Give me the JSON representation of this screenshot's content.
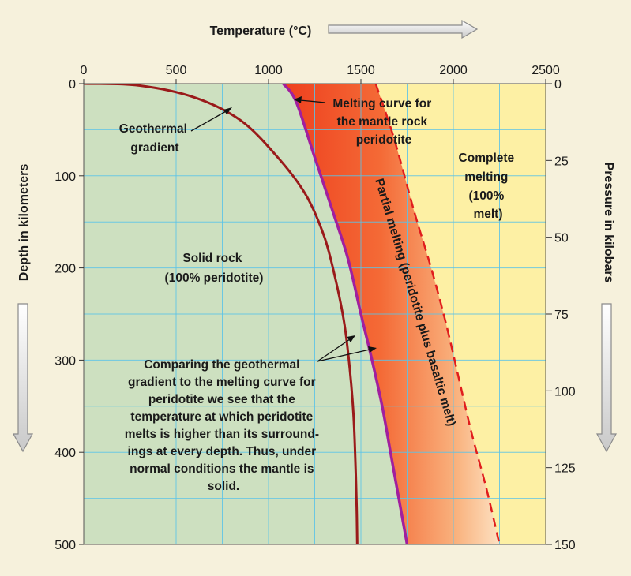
{
  "chart_data": {
    "type": "line",
    "title": "",
    "xlabel": "Temperature (°C)",
    "ylabel_left": "Depth in kilometers",
    "ylabel_right": "Pressure in kilobars",
    "xlim": [
      0,
      2500
    ],
    "ylim_depth_km": [
      0,
      500
    ],
    "ylim_pressure_kbar": [
      0,
      150
    ],
    "x_ticks": [
      "0",
      "500",
      "1000",
      "1500",
      "2000",
      "2500"
    ],
    "y_ticks_left": [
      "0",
      "100",
      "200",
      "300",
      "400",
      "500"
    ],
    "y_ticks_right": [
      "0",
      "25",
      "50",
      "75",
      "100",
      "125",
      "150"
    ],
    "grid": true,
    "series": [
      {
        "name": "Geothermal gradient",
        "color": "#9a1a1a",
        "points": [
          [
            0,
            0
          ],
          [
            300,
            2
          ],
          [
            600,
            15
          ],
          [
            850,
            40
          ],
          [
            1050,
            80
          ],
          [
            1200,
            120
          ],
          [
            1300,
            165
          ],
          [
            1360,
            210
          ],
          [
            1410,
            260
          ],
          [
            1440,
            310
          ],
          [
            1460,
            360
          ],
          [
            1470,
            410
          ],
          [
            1477,
            460
          ],
          [
            1480,
            500
          ]
        ]
      },
      {
        "name": "Melting curve for the mantle rock peridotite",
        "color": "#a11f9e",
        "points": [
          [
            1080,
            0
          ],
          [
            1150,
            20
          ],
          [
            1250,
            80
          ],
          [
            1350,
            140
          ],
          [
            1430,
            190
          ],
          [
            1500,
            250
          ],
          [
            1560,
            300
          ],
          [
            1615,
            350
          ],
          [
            1660,
            400
          ],
          [
            1705,
            450
          ],
          [
            1750,
            500
          ]
        ]
      },
      {
        "name": "Complete melting boundary",
        "color": "#e01d1d",
        "style": "dashed",
        "points": [
          [
            1580,
            0
          ],
          [
            1680,
            60
          ],
          [
            1790,
            140
          ],
          [
            1880,
            200
          ],
          [
            1960,
            260
          ],
          [
            2030,
            320
          ],
          [
            2100,
            380
          ],
          [
            2180,
            440
          ],
          [
            2250,
            500
          ]
        ]
      }
    ],
    "regions": [
      {
        "label_lines": [
          "Solid rock",
          "(100% peridotite)"
        ],
        "color": "#cde0c0"
      },
      {
        "label": "Partial melting (peridotite plus basaltic melt)",
        "color": "#f0502a"
      },
      {
        "label_lines": [
          "Complete",
          "melting",
          "(100%",
          "melt)"
        ],
        "color": "#fdf0a4"
      }
    ],
    "annotations": {
      "geothermal": [
        "Geothermal",
        "gradient"
      ],
      "melting_curve": [
        "Melting curve for",
        "the mantle rock",
        "peridotite"
      ],
      "comparison": [
        "Comparing the geothermal",
        "gradient to the melting curve for",
        "peridotite we see that the",
        "temperature at which peridotite",
        "melts is higher than its surround-",
        "ings at every depth. Thus, under",
        "normal conditions the mantle is",
        "solid."
      ]
    }
  }
}
